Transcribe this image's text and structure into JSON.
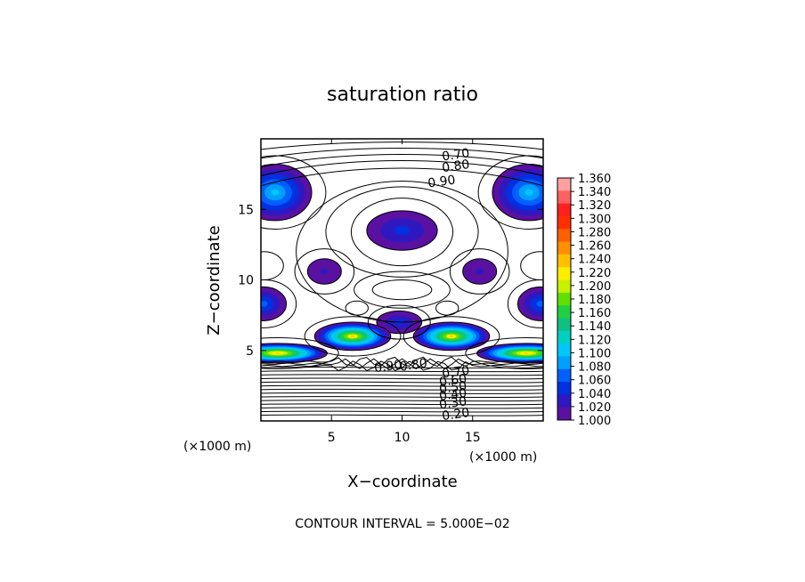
{
  "chart_data": {
    "type": "heatmap",
    "title": "saturation ratio",
    "xlabel": "X−coordinate",
    "ylabel": "Z−coordinate",
    "x_unit_left": "(×1000 m)",
    "x_unit_right": "(×1000 m)",
    "footer": "CONTOUR INTERVAL = 5.000E−02",
    "xlim": [
      0,
      20
    ],
    "ylim": [
      0,
      20
    ],
    "x_ticks": [
      5,
      10,
      15
    ],
    "y_ticks": [
      5,
      10,
      15
    ],
    "contour_interval": 0.05,
    "contour_labels": [
      {
        "text": "0.70",
        "x": 13.8,
        "z": 18.9
      },
      {
        "text": "0.80",
        "x": 13.8,
        "z": 18.1
      },
      {
        "text": "0.90",
        "x": 12.8,
        "z": 17.0
      },
      {
        "text": "0.90",
        "x": 9.0,
        "z": 3.9
      },
      {
        "text": "0.80",
        "x": 10.8,
        "z": 4.0
      },
      {
        "text": "0.70",
        "x": 13.8,
        "z": 3.5
      },
      {
        "text": "0.60",
        "x": 13.6,
        "z": 2.9
      },
      {
        "text": "0.50",
        "x": 13.6,
        "z": 2.4
      },
      {
        "text": "0.40",
        "x": 13.6,
        "z": 1.9
      },
      {
        "text": "0.30",
        "x": 13.6,
        "z": 1.3
      },
      {
        "text": "0.20",
        "x": 13.8,
        "z": 0.5
      }
    ],
    "shaded_regions_saturation_gt_1": [
      {
        "x": 1.0,
        "z": 16.2,
        "rx": 2.6,
        "rz": 2.0,
        "peak": 1.1
      },
      {
        "x": 19.0,
        "z": 16.2,
        "rx": 2.6,
        "rz": 2.0,
        "peak": 1.1
      },
      {
        "x": 10.0,
        "z": 13.5,
        "rx": 2.5,
        "rz": 1.4,
        "peak": 1.04
      },
      {
        "x": 4.5,
        "z": 10.6,
        "rx": 1.2,
        "rz": 0.9,
        "peak": 1.03
      },
      {
        "x": 15.5,
        "z": 10.6,
        "rx": 1.2,
        "rz": 0.9,
        "peak": 1.03
      },
      {
        "x": 0.2,
        "z": 8.3,
        "rx": 1.6,
        "rz": 1.2,
        "peak": 1.06
      },
      {
        "x": 19.8,
        "z": 8.3,
        "rx": 1.6,
        "rz": 1.2,
        "peak": 1.06
      },
      {
        "x": 9.8,
        "z": 7.0,
        "rx": 1.6,
        "rz": 0.8,
        "peak": 1.04
      },
      {
        "x": 6.5,
        "z": 6.0,
        "rx": 2.7,
        "rz": 1.0,
        "peak": 1.23
      },
      {
        "x": 13.5,
        "z": 6.0,
        "rx": 2.7,
        "rz": 1.0,
        "peak": 1.23
      },
      {
        "x": 1.2,
        "z": 4.8,
        "rx": 3.5,
        "rz": 0.7,
        "peak": 1.24
      },
      {
        "x": 18.8,
        "z": 4.8,
        "rx": 3.5,
        "rz": 0.7,
        "peak": 1.24
      }
    ],
    "colorbar": {
      "min": 1.0,
      "max": 1.36,
      "labels": [
        "1.360",
        "1.340",
        "1.320",
        "1.300",
        "1.280",
        "1.260",
        "1.240",
        "1.220",
        "1.200",
        "1.180",
        "1.160",
        "1.140",
        "1.120",
        "1.100",
        "1.080",
        "1.060",
        "1.040",
        "1.020",
        "1.000"
      ],
      "colors": [
        "#ffa0a0",
        "#ff6060",
        "#ff2020",
        "#ff3000",
        "#ff6000",
        "#ff9000",
        "#ffc000",
        "#ffee00",
        "#c8f000",
        "#60e000",
        "#20d040",
        "#10c080",
        "#00d0c0",
        "#00c8ff",
        "#00a0ff",
        "#0060ff",
        "#0030e0",
        "#3018c0",
        "#5a10a0"
      ]
    }
  }
}
